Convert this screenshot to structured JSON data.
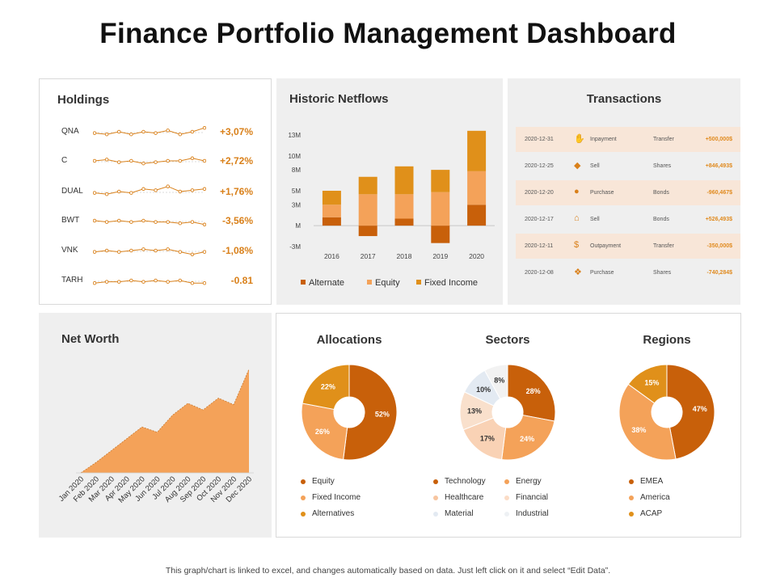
{
  "title": "Finance Portfolio Management Dashboard",
  "footer": "This graph/chart is linked to excel, and changes automatically based on data. Just left click on it and select “Edit Data”.",
  "colors": {
    "dark_orange": "#c8600a",
    "orange": "#f4a259",
    "gold": "#e0901a",
    "light_peach": "#f9d2b5",
    "light_blue": "#e3eaf2",
    "very_light": "#f2f2f2",
    "value_text": "#d9801a"
  },
  "holdings": {
    "title": "Holdings",
    "items": [
      {
        "label": "QNA",
        "value": "+3,07%",
        "points": [
          4,
          3,
          5,
          3,
          5,
          4,
          6,
          3,
          5,
          8
        ]
      },
      {
        "label": "C",
        "value": "+2,72%",
        "points": [
          5,
          6,
          4,
          5,
          3,
          4,
          5,
          5,
          7,
          5
        ]
      },
      {
        "label": "DUAL",
        "value": "+1,76%",
        "points": [
          4,
          3,
          5,
          4,
          7,
          6,
          9,
          5,
          6,
          7
        ]
      },
      {
        "label": "BWT",
        "value": "-3,56%",
        "points": [
          5,
          4,
          5,
          4,
          5,
          4,
          4,
          3,
          4,
          2
        ]
      },
      {
        "label": "VNK",
        "value": "-1,08%",
        "points": [
          4,
          5,
          4,
          5,
          6,
          5,
          6,
          4,
          2,
          4
        ]
      },
      {
        "label": "TARH",
        "value": "-0.81",
        "points": [
          3,
          4,
          4,
          5,
          4,
          5,
          4,
          5,
          3,
          3
        ]
      }
    ]
  },
  "netflows": {
    "title": "Historic Netflows",
    "legend": [
      "Alternate",
      "Equity",
      "Fixed Income"
    ]
  },
  "transactions": {
    "title": "Transactions",
    "rows": [
      {
        "date": "2020-12-31",
        "name": "Inpayment",
        "type": "Transfer",
        "amount": "+500,000$",
        "icon": "hand-coin-icon"
      },
      {
        "date": "2020-12-25",
        "name": "Sell",
        "type": "Shares",
        "amount": "+846,493$",
        "icon": "price-tag-icon"
      },
      {
        "date": "2020-12-20",
        "name": "Purchase",
        "type": "Bonds",
        "amount": "-960,467$",
        "icon": "coins-icon"
      },
      {
        "date": "2020-12-17",
        "name": "Sell",
        "type": "Bonds",
        "amount": "+526,493$",
        "icon": "house-sale-icon"
      },
      {
        "date": "2020-12-11",
        "name": "Outpayment",
        "type": "Transfer",
        "amount": "-350,000$",
        "icon": "dollar-hand-icon"
      },
      {
        "date": "2020-12-08",
        "name": "Purchase",
        "type": "Shares",
        "amount": "-740,284$",
        "icon": "cart-icon"
      }
    ]
  },
  "net_worth": {
    "title": "Net Worth"
  },
  "pies": {
    "allocations": {
      "title": "Allocations",
      "legend": [
        "Equity",
        "Fixed Income",
        "Alternatives"
      ]
    },
    "sectors": {
      "title": "Sectors",
      "legend": [
        "Technology",
        "Energy",
        "Healthcare",
        "Financial",
        "Material",
        "Industrial"
      ]
    },
    "regions": {
      "title": "Regions",
      "legend": [
        "EMEA",
        "America",
        "ACAP"
      ]
    }
  },
  "chart_data": [
    {
      "id": "netflows",
      "type": "bar",
      "stacked": true,
      "title": "Historic Netflows",
      "categories": [
        "2016",
        "2017",
        "2018",
        "2019",
        "2020"
      ],
      "series": [
        {
          "name": "Alternate",
          "values": [
            1.2,
            -1.5,
            1.0,
            -2.5,
            3.0
          ]
        },
        {
          "name": "Equity",
          "values": [
            1.8,
            4.5,
            3.5,
            4.8,
            4.8
          ]
        },
        {
          "name": "Fixed Income",
          "values": [
            2.0,
            2.5,
            4.0,
            3.2,
            5.8
          ]
        }
      ],
      "yticks": [
        "-3M",
        "M",
        "3M",
        "5M",
        "8M",
        "10M",
        "13M"
      ],
      "ylim": [
        -3,
        13
      ]
    },
    {
      "id": "net_worth",
      "type": "area",
      "title": "Net Worth",
      "categories": [
        "Jan 2020",
        "Feb 2020",
        "Mar 2020",
        "Apr 2020",
        "May 2020",
        "Jun 2020",
        "Jul 2020",
        "Aug 2020",
        "Sep 2020",
        "Oct 2020",
        "Nov 2020",
        "Dec 2020"
      ],
      "values": [
        0,
        8,
        17,
        26,
        35,
        31,
        44,
        53,
        48,
        57,
        52,
        79
      ],
      "ylim": [
        0,
        85
      ]
    },
    {
      "id": "allocations",
      "type": "pie",
      "title": "Allocations",
      "labels": [
        "Equity",
        "Fixed Income",
        "Alternatives"
      ],
      "values": [
        52,
        26,
        22
      ],
      "value_labels": [
        "52%",
        "26%",
        "22%"
      ]
    },
    {
      "id": "sectors",
      "type": "pie",
      "title": "Sectors",
      "labels": [
        "Technology",
        "Energy",
        "Healthcare",
        "Financial",
        "Material",
        "Industrial"
      ],
      "values": [
        28,
        24,
        17,
        13,
        10,
        8
      ],
      "value_labels": [
        "28%",
        "24%",
        "17%",
        "13%",
        "10%",
        "8%"
      ]
    },
    {
      "id": "regions",
      "type": "pie",
      "title": "Regions",
      "labels": [
        "EMEA",
        "America",
        "ACAP"
      ],
      "values": [
        47,
        38,
        15
      ],
      "value_labels": [
        "47%",
        "38%",
        "15%"
      ]
    }
  ]
}
